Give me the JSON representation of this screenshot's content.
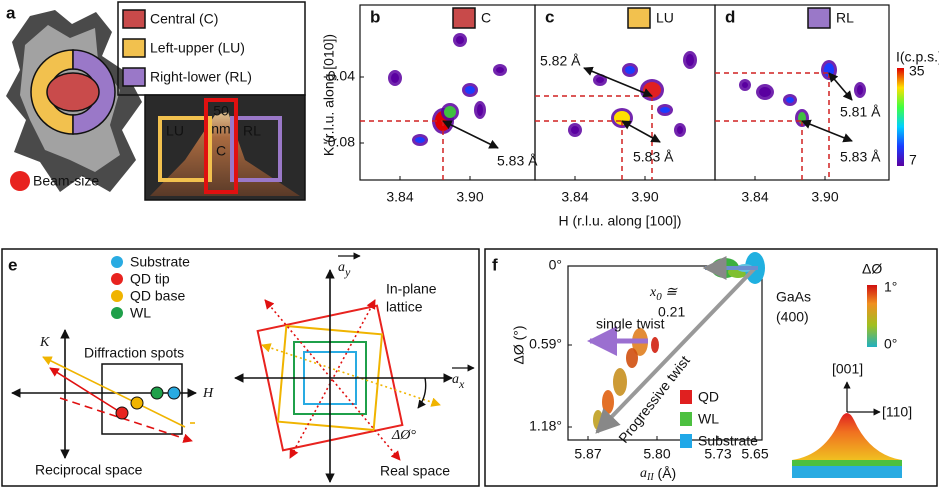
{
  "panel_a": {
    "label": "a",
    "legend": [
      "Central (C)",
      "Left-upper (LU)",
      "Right-lower (RL)"
    ],
    "beam_size": "Beam-size",
    "inset": {
      "left": "LU",
      "right": "RL",
      "center_top": "50",
      "center_mid": "nm",
      "center": "C"
    }
  },
  "panels_bcd": {
    "y_label": "K (r.l.u. along [010])",
    "x_label": "H (r.l.u. along [100])",
    "yticks": [
      "-0.04",
      "-0.08"
    ],
    "xticks": [
      "3.84",
      "3.90"
    ],
    "colorbar": {
      "title": "I(c.p.s.)",
      "max": "35",
      "min": "7"
    },
    "panels": [
      {
        "label": "b",
        "legend": "C",
        "distances": [
          "5.83 Å"
        ]
      },
      {
        "label": "c",
        "legend": "LU",
        "distances": [
          "5.82 Å",
          "5.83 Å"
        ]
      },
      {
        "label": "d",
        "legend": "RL",
        "distances": [
          "5.81 Å",
          "5.83 Å"
        ]
      }
    ]
  },
  "panel_e": {
    "label": "e",
    "legend": [
      "Substrate",
      "QD tip",
      "QD base",
      "WL"
    ],
    "k_axis": "K",
    "h_axis": "H",
    "diffraction_spots": "Diffraction spots",
    "reciprocal_space": "Reciprocal space",
    "a_y": {
      "symbol": "a",
      "subscript": "y"
    },
    "a_x": {
      "symbol": "a",
      "subscript": "x"
    },
    "in_plane_lattice": [
      "In-plane",
      "lattice"
    ],
    "rotation": "ΔØ°",
    "real_space": "Real space"
  },
  "panel_f": {
    "label": "f",
    "y_label": "ΔØ (°)",
    "yticks": [
      "0°",
      "0.59°",
      "1.18°"
    ],
    "xticks": [
      "5.87",
      "5.80",
      "5.73",
      "5.65"
    ],
    "x_label": {
      "symbol": "a",
      "subscript": "II",
      "unit": " (Å)"
    },
    "x0": {
      "symbol": "x",
      "subscript": "0",
      "relation": " ≅",
      "value": "0.21"
    },
    "gaas": [
      "GaAs",
      "(400)"
    ],
    "single_twist": "single twist",
    "progressive_twist": "Progressive twist",
    "legend": [
      "QD",
      "WL",
      "Substrate"
    ],
    "colorbar": {
      "title": "ΔØ",
      "max": "1°",
      "min": "0°"
    },
    "directions": [
      "[001]",
      "[110]"
    ]
  }
}
